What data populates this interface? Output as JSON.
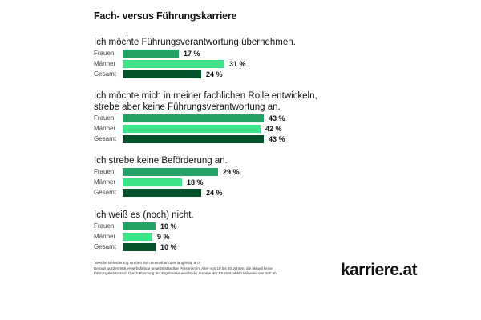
{
  "chart_data": {
    "type": "bar",
    "orientation": "horizontal",
    "title": "Fach- versus Führungskarriere",
    "categories": [
      "Frauen",
      "Männer",
      "Gesamt"
    ],
    "unit": "%",
    "groups": [
      {
        "label": "Ich möchte Führungsverantwortung übernehmen.",
        "values": [
          17,
          31,
          24
        ],
        "labels": [
          "17 %",
          "31 %",
          "24 %"
        ]
      },
      {
        "label": "Ich möchte mich in meiner fachlichen Rolle entwickeln, strebe aber keine Führungsverantwortung an.",
        "label_lines": [
          "Ich möchte mich in meiner fachlichen Rolle entwickeln,",
          "strebe aber keine Führungsverantwortung an."
        ],
        "values": [
          43,
          42,
          43
        ],
        "labels": [
          "43 %",
          "42 %",
          "43 %"
        ]
      },
      {
        "label": "Ich strebe keine Beförderung an.",
        "values": [
          29,
          18,
          24
        ],
        "labels": [
          "29 %",
          "18 %",
          "24 %"
        ]
      },
      {
        "label": "Ich weiß es (noch) nicht.",
        "values": [
          10,
          9,
          10
        ],
        "labels": [
          "10 %",
          "9 %",
          "10 %"
        ]
      }
    ],
    "colors": {
      "Frauen": "#23a466",
      "Männer": "#3ce48a",
      "Gesamt": "#04512a"
    }
  },
  "footnote": {
    "line1": "\"Welche Beförderung streben Sie unmittelbar oder langfristig an?\"",
    "line2": "Befragt wurden 968 erwerbsfähige unselbstständige Personen im Alter von 18 bis 60 Jahren, die aktuell keine",
    "line3": "Führungskräfte sind. Durch Rundung der Ergebnisse weicht die Summe der Prozentzahlen teilweise von 100 ab."
  },
  "brand": {
    "name": "karriere.at"
  }
}
